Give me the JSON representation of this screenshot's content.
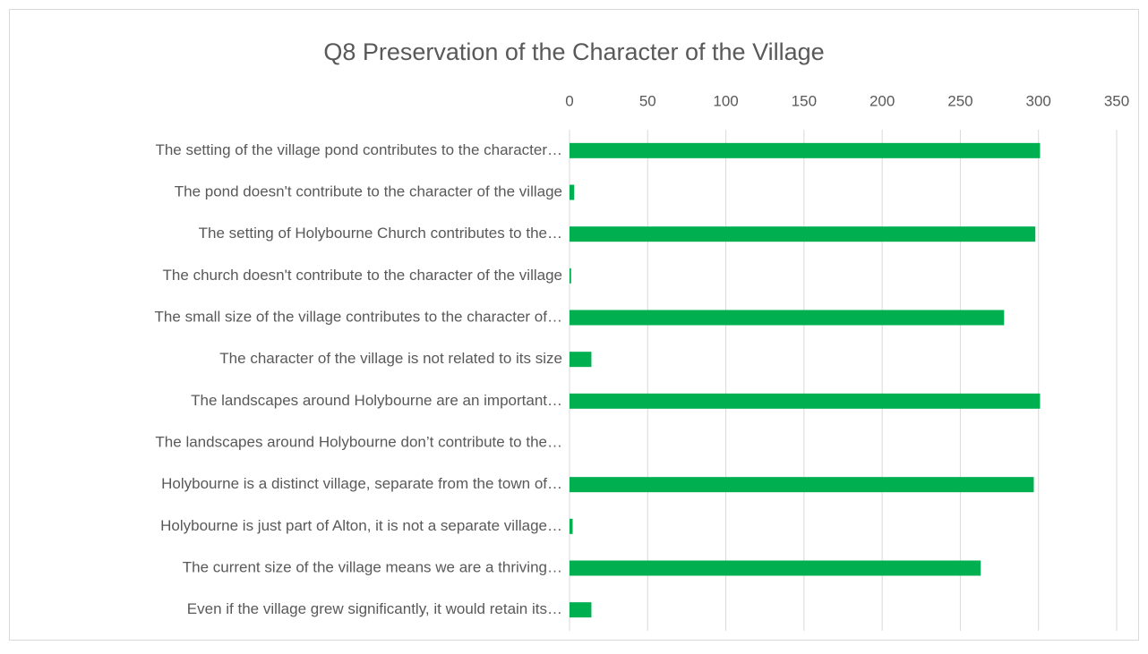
{
  "chart_data": {
    "type": "bar",
    "orientation": "horizontal",
    "title": "Q8 Preservation of the Character of the Village",
    "categories": [
      "The setting of the village pond contributes to the character…",
      "The pond doesn't contribute to the character of the village",
      "The setting of Holybourne Church contributes to the…",
      "The church doesn't contribute to the character of the village",
      "The small size of the village contributes to the character of…",
      "The character of the village is not related to its size",
      "The landscapes around Holybourne are an important…",
      "The landscapes around Holybourne don’t contribute to the…",
      "Holybourne is a distinct village, separate from the town of…",
      "Holybourne is just part of Alton, it is not a separate village…",
      "The current size of the village means we are a thriving…",
      "Even if the village grew significantly, it would retain its…"
    ],
    "values": [
      301,
      3,
      298,
      1,
      278,
      14,
      301,
      0,
      297,
      2,
      263,
      14
    ],
    "color": "#00b050",
    "xlim": [
      0,
      350
    ],
    "xticks": [
      0,
      50,
      100,
      150,
      200,
      250,
      300,
      350
    ],
    "grid": true
  }
}
